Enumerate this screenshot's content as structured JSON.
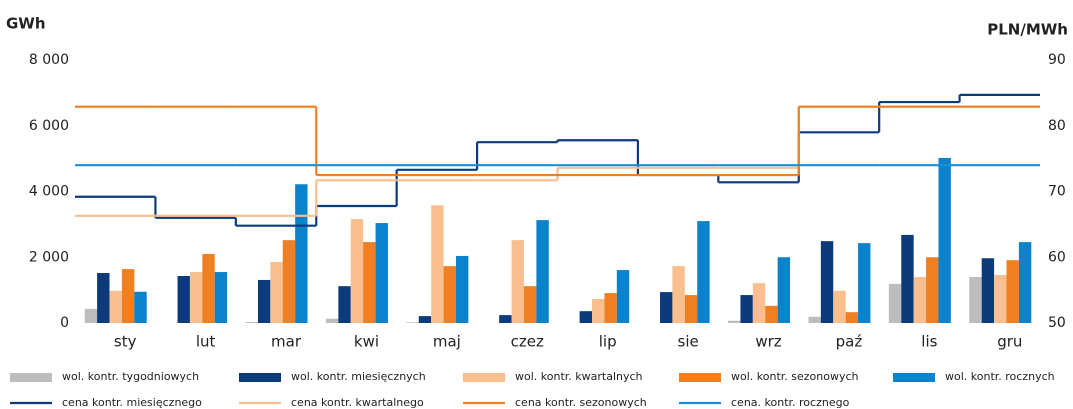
{
  "chart_data": {
    "type": "bar",
    "y_label": "GWh",
    "y2_label": "PLN/MWh",
    "categories": [
      "sty",
      "lut",
      "mar",
      "kwi",
      "maj",
      "czez",
      "lip",
      "sie",
      "wrz",
      "paź",
      "lis",
      "gru"
    ],
    "ylim": [
      0,
      8000
    ],
    "yticks": [
      0,
      {
        "value": 2000,
        "label": "2 000"
      },
      {
        "value": 4000,
        "label": "4 000"
      },
      {
        "value": 6000,
        "label": "6 000"
      },
      {
        "value": 8000,
        "label": "8 000"
      }
    ],
    "y2lim": [
      50,
      90
    ],
    "y2ticks": [
      50,
      60,
      70,
      80,
      90
    ],
    "grid": false,
    "series": [
      {
        "name": "wol. kontr. tygodniowych",
        "type": "bar",
        "color": "#bdbdbd",
        "values": [
          430,
          0,
          30,
          130,
          20,
          0,
          0,
          0,
          70,
          190,
          1190,
          1400
        ]
      },
      {
        "name": "wol. kontr. miesięcznych",
        "type": "bar",
        "color": "#0d3a7a",
        "values": [
          1520,
          1430,
          1310,
          1120,
          210,
          240,
          360,
          940,
          850,
          2490,
          2680,
          1970
        ]
      },
      {
        "name": "wol. kontr. kwartalnych",
        "type": "bar",
        "color": "#f9bf8f",
        "values": [
          980,
          1550,
          1860,
          3160,
          3580,
          2520,
          730,
          1730,
          1210,
          980,
          1400,
          1460
        ]
      },
      {
        "name": "wol. kontr. sezonowych",
        "type": "bar",
        "color": "#f07f22",
        "values": [
          1640,
          2100,
          2520,
          2460,
          1730,
          1120,
          910,
          850,
          520,
          330,
          2000,
          1910
        ]
      },
      {
        "name": "wol. kontr. rocznych",
        "type": "bar",
        "color": "#0a82cc",
        "values": [
          950,
          1550,
          4220,
          3040,
          2040,
          3130,
          1610,
          3100,
          2000,
          2430,
          5020,
          2460
        ]
      },
      {
        "name": "cena kontr. miesięcznego",
        "type": "line",
        "axis": "y2",
        "color": "#0d3a7a",
        "values": [
          69.2,
          66,
          64.8,
          67.8,
          73.3,
          77.5,
          77.8,
          72.5,
          71.4,
          79,
          83.6,
          84.7
        ]
      },
      {
        "name": "cena kontr. kwartalnego",
        "type": "line",
        "axis": "y2",
        "color": "#f9bf8f",
        "values": [
          66.3,
          66.3,
          66.3,
          71.7,
          71.7,
          71.7,
          73.6,
          73.6,
          73.6,
          82.9,
          82.9,
          82.9
        ]
      },
      {
        "name": "cena kontr. sezonowych",
        "type": "line",
        "axis": "y2",
        "color": "#f07f22",
        "values": [
          82.9,
          82.9,
          82.9,
          72.5,
          72.5,
          72.5,
          72.5,
          72.5,
          72.5,
          82.9,
          82.9,
          82.9
        ]
      },
      {
        "name": "cena. kontr. rocznego",
        "type": "line",
        "axis": "y2",
        "color": "#1a8fd6",
        "values": [
          74,
          74,
          74,
          74,
          74,
          74,
          74,
          74,
          74,
          74,
          74,
          74
        ]
      }
    ]
  }
}
